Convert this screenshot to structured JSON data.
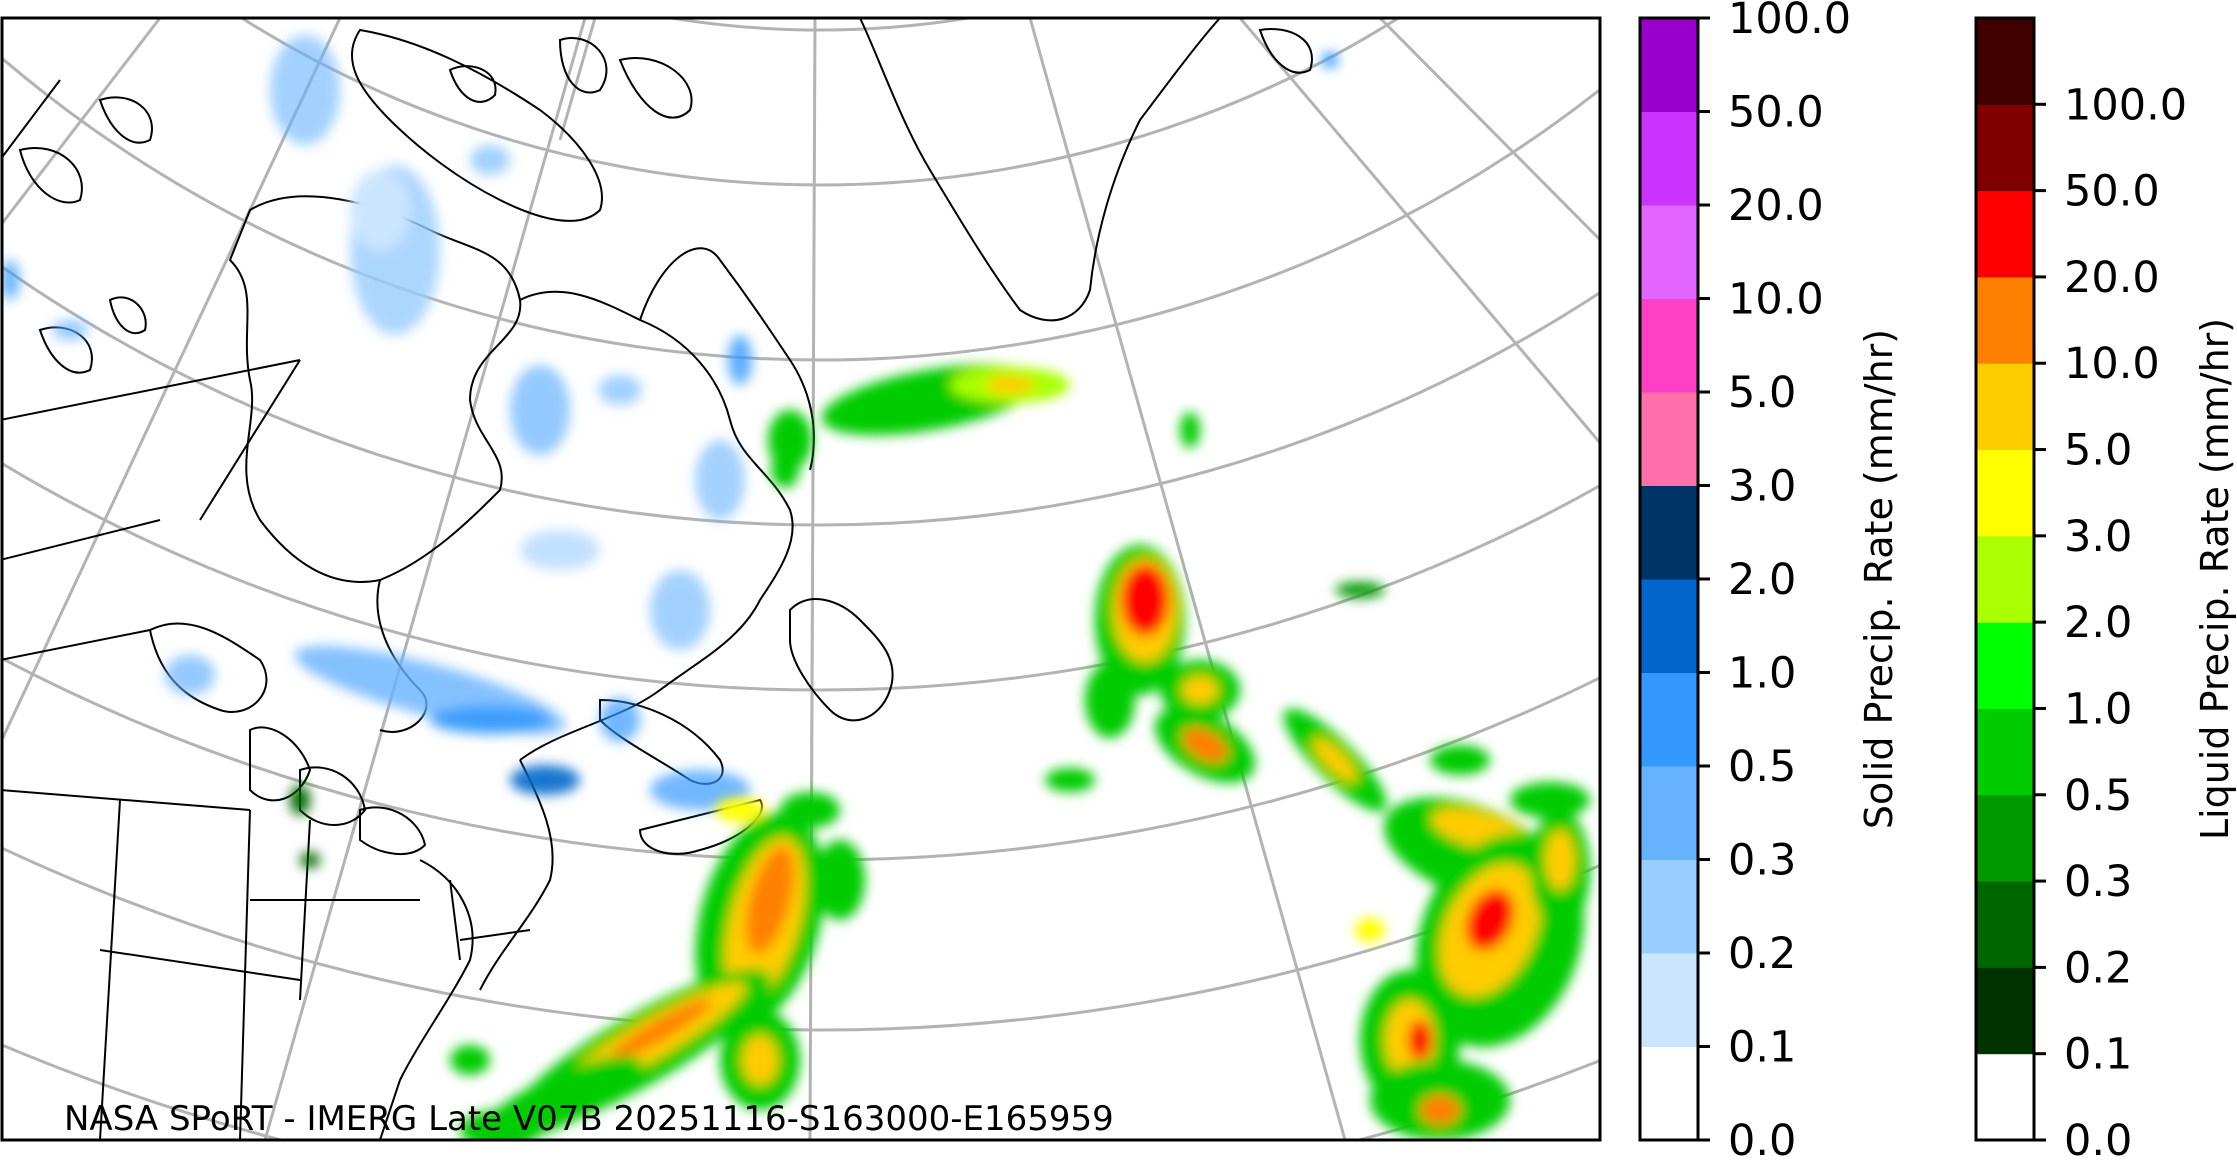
{
  "credit_text": "NASA SPoRT - IMERG Late V07B 20251116-S163000-E165959",
  "colorbars": [
    {
      "title": "Solid Precip. Rate (mm/hr)",
      "ticks": [
        "0.0",
        "0.1",
        "0.2",
        "0.3",
        "0.5",
        "1.0",
        "2.0",
        "3.0",
        "5.0",
        "10.0",
        "20.0",
        "50.0",
        "100.0"
      ],
      "colors": [
        "#ffffff",
        "#cce5ff",
        "#99ccff",
        "#66b2ff",
        "#3399ff",
        "#0066cc",
        "#003366",
        "#ff6fa8",
        "#ff3fc4",
        "#e066ff",
        "#cc33ff",
        "#9900cc"
      ]
    },
    {
      "title": "Liquid Precip. Rate (mm/hr)",
      "ticks": [
        "0.0",
        "0.1",
        "0.2",
        "0.3",
        "0.5",
        "1.0",
        "2.0",
        "3.0",
        "5.0",
        "10.0",
        "20.0",
        "50.0",
        "100.0"
      ],
      "colors": [
        "#ffffff",
        "#003300",
        "#006600",
        "#009900",
        "#00cc00",
        "#00ff00",
        "#aaff00",
        "#ffff00",
        "#ffcc00",
        "#ff8000",
        "#ff0000",
        "#800000",
        "#400000"
      ]
    }
  ]
}
